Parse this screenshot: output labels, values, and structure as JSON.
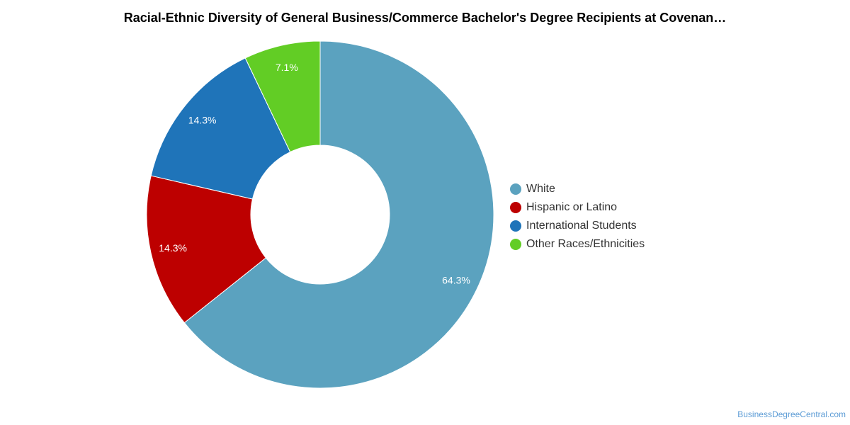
{
  "chart_data": {
    "type": "pie",
    "title": "Racial-Ethnic Diversity of General Business/Commerce Bachelor's Degree Recipients at Covenan…",
    "donut": true,
    "legend_position": "right",
    "series": [
      {
        "name": "White",
        "value": 64.3,
        "label": "64.3%",
        "color": "#5ba2bf"
      },
      {
        "name": "Hispanic or Latino",
        "value": 14.3,
        "label": "14.3%",
        "color": "#bd0000"
      },
      {
        "name": "International Students",
        "value": 14.3,
        "label": "14.3%",
        "color": "#1f74b9"
      },
      {
        "name": "Other Races/Ethnicities",
        "value": 7.1,
        "label": "7.1%",
        "color": "#62cd25"
      }
    ]
  },
  "watermark": "BusinessDegreeCentral.com"
}
